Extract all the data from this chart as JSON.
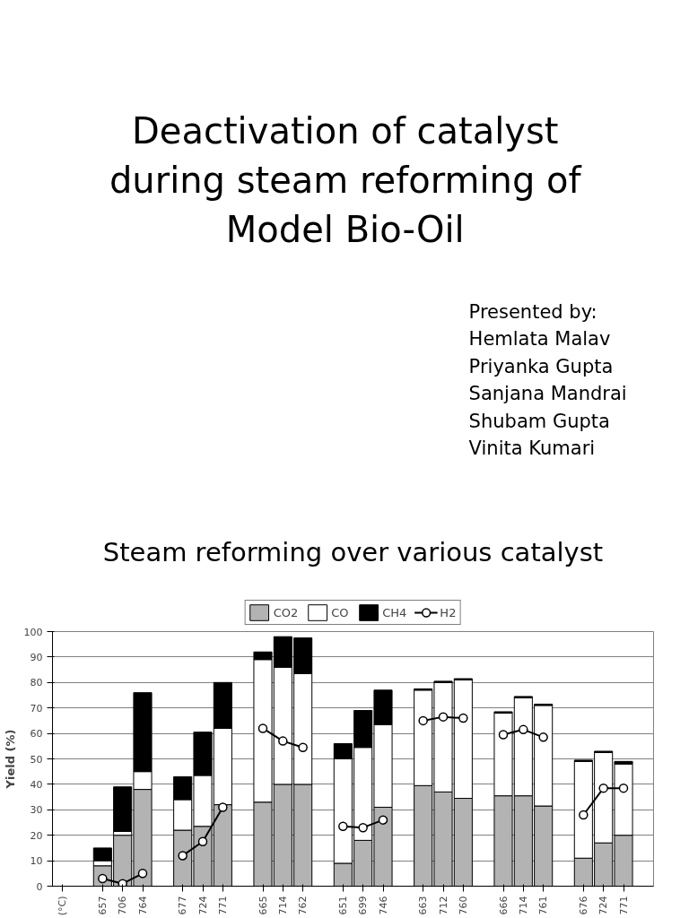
{
  "chart_data": {
    "type": "bar",
    "title": "Deactivation of catalyst during steam reforming of Model Bio-Oil",
    "subtitle": "Steam reforming over various catalyst",
    "ylabel": "Yield (%)",
    "annotations": [
      "Presented by:",
      "Hemlata Malav",
      "Priyanka Gupta",
      "Sanjana Mandrai",
      "Shubam Gupta",
      "Vinita Kumari"
    ],
    "categories": [
      "(°C)",
      null,
      "657",
      "706",
      "764",
      null,
      "677",
      "724",
      "771",
      null,
      "665",
      "714",
      "762",
      null,
      "651",
      "699",
      "746",
      null,
      "663",
      "712",
      "760",
      null,
      "666",
      "714",
      "761",
      null,
      "676",
      "724",
      "771",
      null
    ],
    "stacked": true,
    "series": [
      {
        "name": "CO2",
        "color": "#b3b3b3",
        "values": [
          null,
          null,
          8,
          20,
          38,
          null,
          22,
          23.5,
          32,
          null,
          33,
          40,
          40,
          null,
          9,
          18,
          31,
          null,
          39.5,
          37,
          34.5,
          null,
          35.5,
          35.5,
          31.5,
          null,
          11,
          17,
          20,
          null
        ]
      },
      {
        "name": "CO",
        "color": "#ffffff",
        "values": [
          null,
          null,
          2,
          1.5,
          7,
          null,
          12,
          20,
          30,
          null,
          56,
          46,
          43.5,
          null,
          41,
          36.5,
          32.5,
          null,
          37.5,
          43,
          46.5,
          null,
          32.5,
          38.5,
          39.5,
          null,
          38,
          35.5,
          28,
          null
        ]
      },
      {
        "name": "CH4",
        "color": "#000000",
        "values": [
          null,
          null,
          5,
          17.5,
          31,
          null,
          9,
          17,
          18,
          null,
          3,
          12,
          14,
          null,
          6,
          14.5,
          13.5,
          null,
          0.5,
          0.5,
          0.5,
          null,
          0.5,
          0.5,
          0.5,
          null,
          0.5,
          0.5,
          1,
          null
        ]
      },
      {
        "name": "H2",
        "type": "line",
        "color": "#000000",
        "marker": "circle",
        "values": [
          null,
          null,
          3,
          1,
          5,
          null,
          12,
          17.5,
          31,
          null,
          62,
          57,
          54.5,
          null,
          23.5,
          23,
          26,
          null,
          65,
          66.5,
          66,
          null,
          59.5,
          61.5,
          58.5,
          null,
          28,
          38.5,
          38.5,
          null
        ]
      }
    ],
    "ylim": [
      0,
      100
    ],
    "yticks": [
      0,
      10,
      20,
      30,
      40,
      50,
      60,
      70,
      80,
      90,
      100
    ],
    "grid": "y",
    "legend": "top"
  }
}
